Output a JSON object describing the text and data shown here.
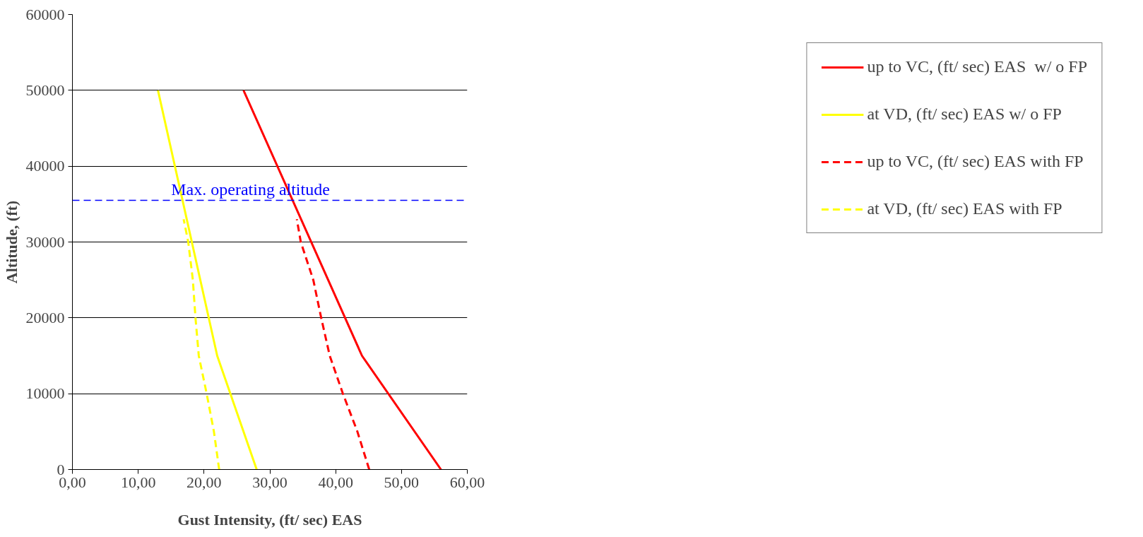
{
  "chart_data": {
    "type": "line",
    "xlabel": "Gust Intensity, (ft/ sec) EAS",
    "ylabel": "Altitude, (ft)",
    "xlim": [
      0,
      60
    ],
    "ylim": [
      0,
      60000
    ],
    "xticks": [
      {
        "value": 0,
        "label": "0,00"
      },
      {
        "value": 10,
        "label": "10,00"
      },
      {
        "value": 20,
        "label": "20,00"
      },
      {
        "value": 30,
        "label": "30,00"
      },
      {
        "value": 40,
        "label": "40,00"
      },
      {
        "value": 50,
        "label": "50,00"
      },
      {
        "value": 60,
        "label": "60,00"
      }
    ],
    "yticks": [
      0,
      10000,
      20000,
      30000,
      40000,
      50000,
      60000
    ],
    "grid": "y",
    "legend": "right",
    "marker": "none",
    "series": [
      {
        "name": "up to VC, (ft/ sec) EAS  w/ o FP",
        "color": "#ff0000",
        "line_style": "solid",
        "x": [
          56,
          44,
          26
        ],
        "values": [
          0,
          15000,
          50000
        ]
      },
      {
        "name": "at VD, (ft/ sec) EAS w/ o FP",
        "color": "#ffff00",
        "line_style": "solid",
        "x": [
          28,
          22,
          13
        ],
        "values": [
          0,
          15000,
          50000
        ]
      },
      {
        "name": "up to VC, (ft/ sec) EAS with FP",
        "color": "#ff0000",
        "line_style": "dashed",
        "x": [
          45.1,
          43.3,
          41.1,
          39.1,
          37.8,
          36.6,
          34.7,
          34.1
        ],
        "values": [
          0,
          5000,
          10000,
          15000,
          20000,
          25000,
          30000,
          33000
        ]
      },
      {
        "name": "at VD, (ft/ sec) EAS with FP",
        "color": "#ffff00",
        "line_style": "dashed",
        "x": [
          22.3,
          21.5,
          20.4,
          19.2,
          18.7,
          18.3,
          17.6,
          16.9
        ],
        "values": [
          0,
          5000,
          10000,
          15000,
          20000,
          25000,
          30000,
          33000
        ]
      }
    ],
    "ref_lines": [
      {
        "axis": "y",
        "value": 35500,
        "label": "Max. operating altitude",
        "color": "#0000ff",
        "line_style": "dashed"
      }
    ]
  }
}
